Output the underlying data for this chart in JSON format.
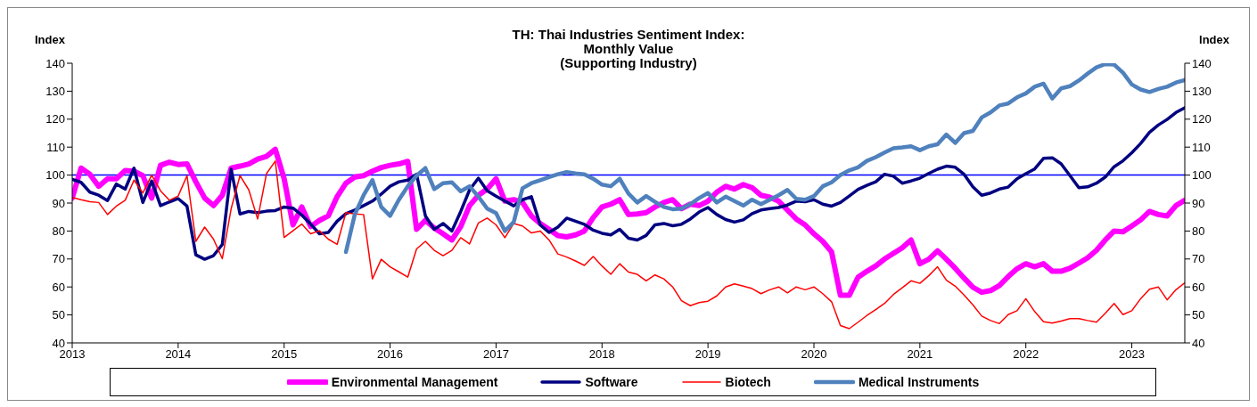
{
  "chart_data": {
    "type": "line",
    "title": "TH: Thai Industries Sentiment Index:\nMonthly Value\n(Supporting Industry)",
    "ylabel": "Index",
    "y2label": "Index",
    "x": [
      "2013-01",
      "2013-02",
      "2013-03",
      "2013-04",
      "2013-05",
      "2013-06",
      "2013-07",
      "2013-08",
      "2013-09",
      "2013-10",
      "2013-11",
      "2013-12",
      "2014-01",
      "2014-02",
      "2014-03",
      "2014-04",
      "2014-05",
      "2014-06",
      "2014-07",
      "2014-08",
      "2014-09",
      "2014-10",
      "2014-11",
      "2014-12",
      "2015-01",
      "2015-02",
      "2015-03",
      "2015-04",
      "2015-05",
      "2015-06",
      "2015-07",
      "2015-08",
      "2015-09",
      "2015-10",
      "2015-11",
      "2015-12",
      "2016-01",
      "2016-02",
      "2016-03",
      "2016-04",
      "2016-05",
      "2016-06",
      "2016-07",
      "2016-08",
      "2016-09",
      "2016-10",
      "2016-11",
      "2016-12",
      "2017-01",
      "2017-02",
      "2017-03",
      "2017-04",
      "2017-05",
      "2017-06",
      "2017-07",
      "2017-08",
      "2017-09",
      "2017-10",
      "2017-11",
      "2017-12",
      "2018-01",
      "2018-02",
      "2018-03",
      "2018-04",
      "2018-05",
      "2018-06",
      "2018-07",
      "2018-08",
      "2018-09",
      "2018-10",
      "2018-11",
      "2018-12",
      "2019-01",
      "2019-02",
      "2019-03",
      "2019-04",
      "2019-05",
      "2019-06",
      "2019-07",
      "2019-08",
      "2019-09",
      "2019-10",
      "2019-11",
      "2019-12",
      "2020-01",
      "2020-02",
      "2020-03",
      "2020-04",
      "2020-05",
      "2020-06",
      "2020-07",
      "2020-08",
      "2020-09",
      "2020-10",
      "2020-11",
      "2020-12",
      "2021-01",
      "2021-02",
      "2021-03",
      "2021-04",
      "2021-05",
      "2021-06",
      "2021-07",
      "2021-08",
      "2021-09",
      "2021-10",
      "2021-11",
      "2021-12",
      "2022-01",
      "2022-02",
      "2022-03",
      "2022-04",
      "2022-05",
      "2022-06",
      "2022-07",
      "2022-08",
      "2022-09",
      "2022-10",
      "2022-11",
      "2022-12",
      "2023-01",
      "2023-02",
      "2023-03",
      "2023-04",
      "2023-05",
      "2023-06",
      "2023-07"
    ],
    "series": [
      {
        "name": "Environmental Management",
        "color": "#ff00ff",
        "values": [
          91.8,
          102.5,
          100.3,
          96,
          98.7,
          98.7,
          101.6,
          101.4,
          99.8,
          91.8,
          103.5,
          104.6,
          103.8,
          104,
          97.6,
          91.8,
          89.1,
          92.8,
          102.5,
          103.2,
          104,
          105.7,
          106.7,
          109.2,
          98.7,
          82.2,
          88.6,
          81.6,
          83.8,
          85.4,
          92.3,
          97.1,
          99.3,
          99.8,
          101.4,
          102.7,
          103.5,
          104,
          104.9,
          80.6,
          83.8,
          81.1,
          79,
          76.8,
          81.6,
          89.1,
          92.8,
          95,
          98.7,
          90.7,
          91.2,
          90.2,
          85.4,
          82.7,
          80.6,
          78.4,
          77.9,
          78.6,
          80,
          84.8,
          88.6,
          89.6,
          91.2,
          85.9,
          86.1,
          86.6,
          88.6,
          90.2,
          91.2,
          88,
          89.6,
          89.1,
          90.7,
          93.9,
          96,
          95,
          96.6,
          95.5,
          92.8,
          92.1,
          90.7,
          87.5,
          84.3,
          82.2,
          79,
          76.3,
          72.5,
          57,
          57,
          63.5,
          65.6,
          67.5,
          70,
          72,
          74,
          76.8,
          68.3,
          69.9,
          72.9,
          69.9,
          66.7,
          63.2,
          59.9,
          58.1,
          58.7,
          60.5,
          63.7,
          66.5,
          68.3,
          67.2,
          68.3,
          65.6,
          65.6,
          66.7,
          68.5,
          70.4,
          73.1,
          76.8,
          80,
          79.7,
          81.8,
          84,
          87,
          85.9,
          85.4,
          89.1,
          91
        ]
      },
      {
        "name": "Software",
        "color": "#000080",
        "values": [
          98.5,
          97.4,
          93.9,
          92.8,
          90.9,
          96.8,
          95,
          102.5,
          90.2,
          97.9,
          89.1,
          90.4,
          91.6,
          88.9,
          71.5,
          69.9,
          71.2,
          75.2,
          102.1,
          86.1,
          87,
          86.6,
          87.1,
          87.3,
          88.6,
          88.2,
          85.7,
          82.5,
          79,
          79.5,
          83.5,
          86.2,
          87.5,
          89.1,
          90.7,
          93.2,
          96,
          97.6,
          98.2,
          100.3,
          85.4,
          80.6,
          82.7,
          80,
          87,
          94.7,
          98.9,
          94.4,
          92.5,
          90.7,
          89,
          91.2,
          92.3,
          82.2,
          79.5,
          81.4,
          84.6,
          83.5,
          82.4,
          80.3,
          79.2,
          78.6,
          80.6,
          77.4,
          76.8,
          78.4,
          82.2,
          82.7,
          81.9,
          82.4,
          84.3,
          86.8,
          88.4,
          85.9,
          84.1,
          83.2,
          84,
          86.2,
          87.5,
          88,
          88.4,
          89.3,
          90.7,
          90.5,
          91.2,
          89.6,
          88.9,
          90.2,
          92.5,
          94.9,
          96.3,
          97.6,
          100.3,
          99.6,
          97.1,
          97.9,
          98.9,
          100.6,
          102.1,
          103.2,
          102.8,
          100.3,
          95.8,
          92.8,
          93.6,
          95,
          95.7,
          98.7,
          100.5,
          102.2,
          106,
          106.2,
          104,
          99.8,
          95.5,
          95.8,
          97.1,
          99.3,
          103,
          105.1,
          108,
          111.3,
          115.3,
          117.9,
          119.9,
          122.4,
          124.1
        ]
      },
      {
        "name": "Biotech",
        "color": "#ff0000",
        "values": [
          92,
          91.2,
          90.5,
          90.2,
          85.9,
          88.9,
          91,
          98.2,
          93.6,
          100,
          94.4,
          91,
          92.5,
          99.8,
          76.3,
          81.4,
          77.1,
          70.1,
          88,
          99.8,
          94.7,
          84.3,
          100.5,
          105,
          77.7,
          80.1,
          82.5,
          79,
          80.1,
          77.1,
          75.2,
          86.6,
          86.1,
          85.9,
          62.9,
          69.9,
          67.2,
          65.4,
          63.5,
          73.6,
          76.3,
          73.1,
          71.2,
          73.1,
          77.6,
          75.4,
          82.9,
          84.6,
          82.2,
          77.6,
          82.7,
          81.8,
          79.3,
          80,
          76.8,
          71.8,
          70.7,
          69.3,
          67.7,
          70.9,
          67.5,
          64.5,
          68.3,
          65.3,
          64.5,
          62.2,
          64.3,
          62.9,
          60,
          55.1,
          53.3,
          54.4,
          54.9,
          56.8,
          60,
          61.1,
          60.3,
          59.4,
          57.6,
          59,
          60,
          57.9,
          60,
          59,
          60,
          57.6,
          54.7,
          46.2,
          45.1,
          47.4,
          49.8,
          51.9,
          54.1,
          57.3,
          59.7,
          62.2,
          61.3,
          64,
          67.2,
          62.4,
          60.3,
          57.1,
          53.6,
          49.6,
          48,
          46.9,
          50.1,
          51.5,
          55.8,
          51.2,
          47.6,
          47.1,
          47.8,
          48.7,
          48.7,
          48,
          47.4,
          50.6,
          54.1,
          50.1,
          51.5,
          55.8,
          59.2,
          60,
          55.4,
          59,
          61.5
        ]
      },
      {
        "name": "Medical Instruments",
        "color": "#4f81bd",
        "values": [
          null,
          null,
          null,
          null,
          null,
          null,
          null,
          null,
          null,
          null,
          null,
          null,
          null,
          null,
          null,
          null,
          null,
          null,
          null,
          null,
          null,
          null,
          null,
          null,
          null,
          null,
          null,
          null,
          null,
          null,
          null,
          72.5,
          85.9,
          92.8,
          98.2,
          88.6,
          85.4,
          91.2,
          96,
          99.8,
          102.5,
          95,
          97.1,
          97.4,
          94.2,
          96,
          92.3,
          88,
          86.4,
          80,
          83.2,
          95.3,
          97.1,
          98.2,
          99.3,
          100.3,
          101.1,
          100.6,
          100.3,
          98.7,
          96.6,
          96,
          98.7,
          93.4,
          90.2,
          92.5,
          90.4,
          88.6,
          87.8,
          88,
          89.6,
          91.8,
          93.6,
          90.2,
          92.3,
          90.7,
          89.1,
          91.2,
          89.6,
          91.2,
          92.8,
          94.7,
          91.5,
          91.2,
          92.5,
          96,
          97.4,
          100,
          101.7,
          102.8,
          105.1,
          106.4,
          108.1,
          109.6,
          109.9,
          110.3,
          108.9,
          110.3,
          111,
          114.5,
          111.5,
          115,
          115.8,
          120.6,
          122.4,
          124.9,
          125.6,
          127.8,
          129.2,
          131.6,
          132.7,
          127.4,
          131,
          131.8,
          133.8,
          136.3,
          138.5,
          139.7,
          139.5,
          136.6,
          132.4,
          130.6,
          129.7,
          130.8,
          131.6,
          133.1,
          134
        ]
      }
    ],
    "xlim": [
      "2013-01",
      "2023-07"
    ],
    "xticks": [
      "2013",
      "2014",
      "2015",
      "2016",
      "2017",
      "2018",
      "2019",
      "2020",
      "2021",
      "2022",
      "2023"
    ],
    "ylim": [
      40,
      140
    ],
    "yticks": [
      40,
      50,
      60,
      70,
      80,
      90,
      100,
      110,
      120,
      130,
      140
    ],
    "y2lim": [
      40,
      140
    ],
    "y2ticks": [
      40,
      50,
      60,
      70,
      80,
      90,
      100,
      110,
      120,
      130,
      140
    ],
    "ref_lines": [
      {
        "axis": "y",
        "value": 100,
        "color": "#0000ff"
      }
    ],
    "legend": "bottom"
  }
}
